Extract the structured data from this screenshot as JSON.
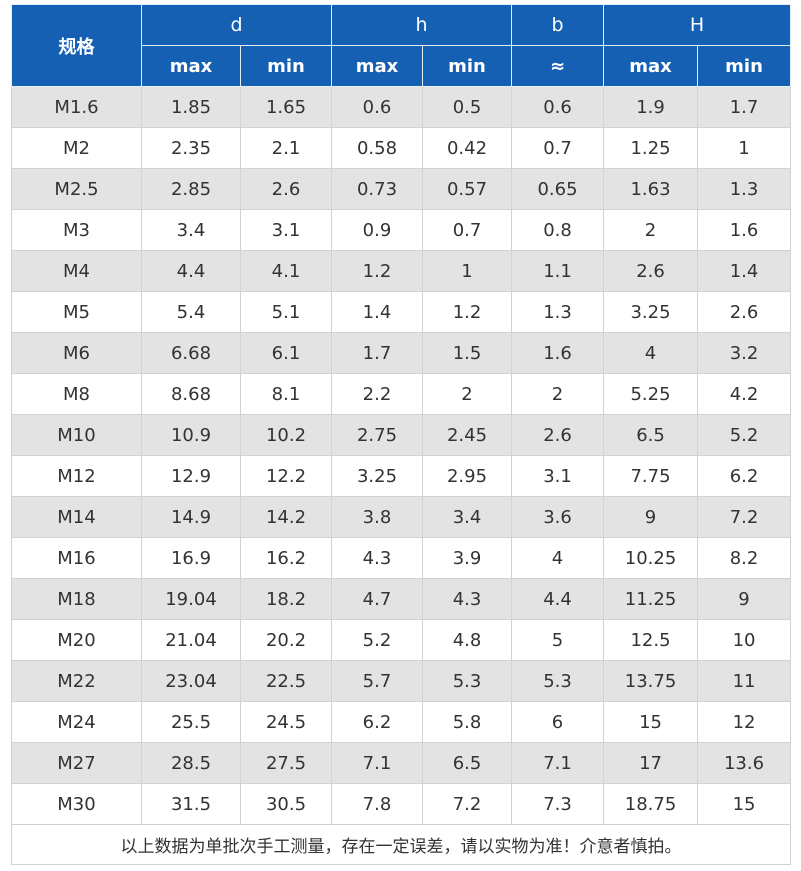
{
  "header": {
    "spec_label": "规格",
    "groups": [
      "d",
      "h",
      "b",
      "H"
    ],
    "subs": [
      "max",
      "min",
      "max",
      "min",
      "≈",
      "max",
      "min"
    ]
  },
  "rows": [
    [
      "M1.6",
      "1.85",
      "1.65",
      "0.6",
      "0.5",
      "0.6",
      "1.9",
      "1.7"
    ],
    [
      "M2",
      "2.35",
      "2.1",
      "0.58",
      "0.42",
      "0.7",
      "1.25",
      "1"
    ],
    [
      "M2.5",
      "2.85",
      "2.6",
      "0.73",
      "0.57",
      "0.65",
      "1.63",
      "1.3"
    ],
    [
      "M3",
      "3.4",
      "3.1",
      "0.9",
      "0.7",
      "0.8",
      "2",
      "1.6"
    ],
    [
      "M4",
      "4.4",
      "4.1",
      "1.2",
      "1",
      "1.1",
      "2.6",
      "1.4"
    ],
    [
      "M5",
      "5.4",
      "5.1",
      "1.4",
      "1.2",
      "1.3",
      "3.25",
      "2.6"
    ],
    [
      "M6",
      "6.68",
      "6.1",
      "1.7",
      "1.5",
      "1.6",
      "4",
      "3.2"
    ],
    [
      "M8",
      "8.68",
      "8.1",
      "2.2",
      "2",
      "2",
      "5.25",
      "4.2"
    ],
    [
      "M10",
      "10.9",
      "10.2",
      "2.75",
      "2.45",
      "2.6",
      "6.5",
      "5.2"
    ],
    [
      "M12",
      "12.9",
      "12.2",
      "3.25",
      "2.95",
      "3.1",
      "7.75",
      "6.2"
    ],
    [
      "M14",
      "14.9",
      "14.2",
      "3.8",
      "3.4",
      "3.6",
      "9",
      "7.2"
    ],
    [
      "M16",
      "16.9",
      "16.2",
      "4.3",
      "3.9",
      "4",
      "10.25",
      "8.2"
    ],
    [
      "M18",
      "19.04",
      "18.2",
      "4.7",
      "4.3",
      "4.4",
      "11.25",
      "9"
    ],
    [
      "M20",
      "21.04",
      "20.2",
      "5.2",
      "4.8",
      "5",
      "12.5",
      "10"
    ],
    [
      "M22",
      "23.04",
      "22.5",
      "5.7",
      "5.3",
      "5.3",
      "13.75",
      "11"
    ],
    [
      "M24",
      "25.5",
      "24.5",
      "6.2",
      "5.8",
      "6",
      "15",
      "12"
    ],
    [
      "M27",
      "28.5",
      "27.5",
      "7.1",
      "6.5",
      "7.1",
      "17",
      "13.6"
    ],
    [
      "M30",
      "31.5",
      "30.5",
      "7.8",
      "7.2",
      "7.3",
      "18.75",
      "15"
    ]
  ],
  "note": "以上数据为单批次手工测量，存在一定误差，请以实物为准！介意者慎拍。",
  "colors": {
    "header_bg": "#1660b4",
    "stripe": "#e3e3e3"
  }
}
